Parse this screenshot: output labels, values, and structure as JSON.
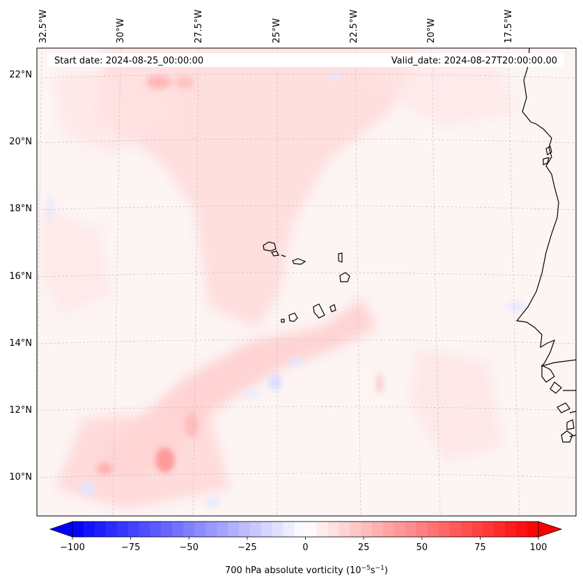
{
  "map": {
    "start_date": "Start date: 2024-08-25_00:00:00",
    "valid_date": "Valid_date: 2024-08-27T20:00:00.00",
    "lon_labels": [
      "32.5°W",
      "30°W",
      "27.5°W",
      "25°W",
      "22.5°W",
      "20°W",
      "17.5°W"
    ],
    "lat_labels": [
      "22°N",
      "20°N",
      "18°N",
      "16°N",
      "14°N",
      "12°N",
      "10°N"
    ],
    "coastline_color": "#000000",
    "background_color": "#fdf3f3",
    "gridlines": true
  },
  "colorbar": {
    "label_prefix": "700 hPa absolute vorticity (10",
    "label_exp1": "−5",
    "label_mid": "s",
    "label_exp2": "−1",
    "label_suffix": ")",
    "ticks": [
      "−100",
      "−75",
      "−50",
      "−25",
      "0",
      "25",
      "50",
      "75",
      "100"
    ],
    "min": -100,
    "max": 100,
    "levels": 42,
    "colormap": [
      "#0000ff",
      "#ffffff",
      "#ff0000"
    ],
    "extend": "both"
  }
}
